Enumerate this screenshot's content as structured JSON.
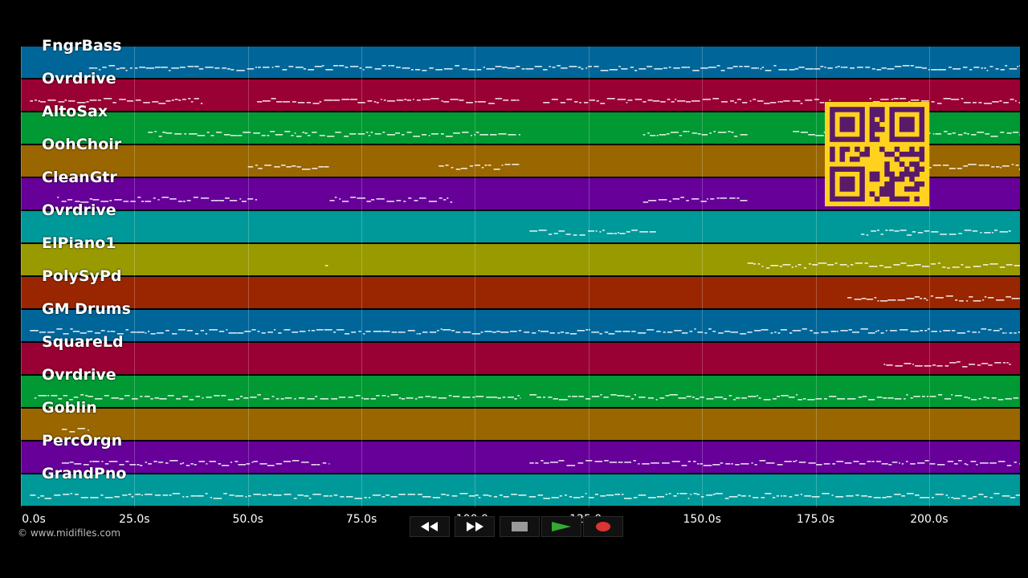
{
  "tracks": [
    {
      "name": "FngrBass",
      "color": "#006699"
    },
    {
      "name": "Ovrdrive",
      "color": "#990033"
    },
    {
      "name": "AltoSax",
      "color": "#009933"
    },
    {
      "name": "OohChoir",
      "color": "#996600"
    },
    {
      "name": "CleanGtr",
      "color": "#660099"
    },
    {
      "name": "Ovrdrive",
      "color": "#009999"
    },
    {
      "name": "ElPiano1",
      "color": "#999900"
    },
    {
      "name": "PolySyPd",
      "color": "#992600"
    },
    {
      "name": "GM Drums",
      "color": "#006699"
    },
    {
      "name": "SquareLd",
      "color": "#990033"
    },
    {
      "name": "Ovrdrive",
      "color": "#009933"
    },
    {
      "name": "Goblin",
      "color": "#996600"
    },
    {
      "name": "PercOrgn",
      "color": "#660099"
    },
    {
      "name": "GrandPno",
      "color": "#009999"
    }
  ],
  "timeline": {
    "min_seconds": 0,
    "max_seconds": 220,
    "ticks": [
      {
        "value": 0,
        "label": "0.0s"
      },
      {
        "value": 25,
        "label": "25.0s"
      },
      {
        "value": 50,
        "label": "50.0s"
      },
      {
        "value": 75,
        "label": "75.0s"
      },
      {
        "value": 100,
        "label": "100.0s"
      },
      {
        "value": 125,
        "label": "125.0s"
      },
      {
        "value": 150,
        "label": "150.0s"
      },
      {
        "value": 175,
        "label": "175.0s"
      },
      {
        "value": 200,
        "label": "200.0s"
      }
    ]
  },
  "copyright": "© www.midifiles.com",
  "transport": {
    "rewind_icon": "rewind-icon",
    "fast_forward_icon": "fast-forward-icon",
    "stop_icon": "stop-icon",
    "play_icon": "play-icon",
    "record_icon": "record-icon",
    "play_color": "#33aa33",
    "record_color": "#dd3333"
  },
  "qr_code": {
    "icon": "qr-code-icon",
    "color": "#ffd21f",
    "ink": "#5a1a6a"
  }
}
